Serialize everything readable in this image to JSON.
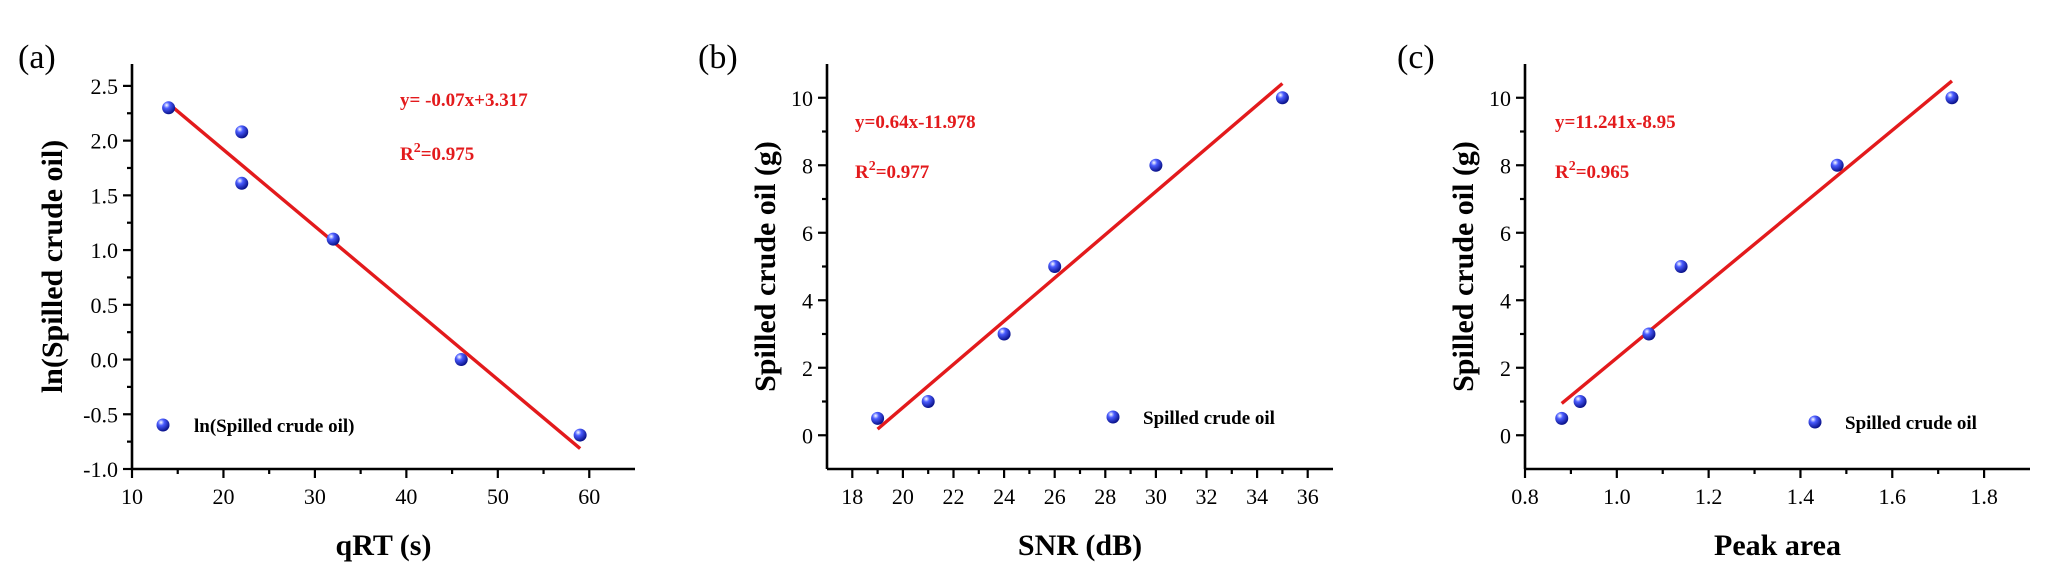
{
  "colors": {
    "point": "#1f2fd6",
    "fit_line": "#e31a1c",
    "annotation": "#e31a1c"
  },
  "chart_data": [
    {
      "panel_label": "(a)",
      "type": "scatter",
      "xlabel": "qRT (s)",
      "ylabel": "ln(Spilled crude oil)",
      "xlim": [
        10,
        65
      ],
      "ylim": [
        -1.0,
        2.7
      ],
      "xticks": [
        10,
        20,
        30,
        40,
        50,
        60
      ],
      "xtick_labels": [
        "10",
        "20",
        "30",
        "40",
        "50",
        "60"
      ],
      "yticks": [
        -1.0,
        -0.5,
        0.0,
        0.5,
        1.0,
        1.5,
        2.0,
        2.5
      ],
      "ytick_labels": [
        "-1.0",
        "-0.5",
        "0.0",
        "0.5",
        "1.0",
        "1.5",
        "2.0",
        "2.5"
      ],
      "series": [
        {
          "name": "ln(Spilled crude oil)",
          "x": [
            14,
            22,
            22,
            32,
            46,
            59
          ],
          "y": [
            2.3,
            2.08,
            1.61,
            1.1,
            0.0,
            -0.69
          ]
        }
      ],
      "fit": {
        "slope": -0.07,
        "intercept": 3.317,
        "x_range": [
          14,
          59
        ]
      },
      "equation": "y= -0.07x+3.317",
      "r2_prefix": "R",
      "r2_sup": "2",
      "r2_value": "=0.975",
      "legend_position": "bottom-left"
    },
    {
      "panel_label": "(b)",
      "type": "scatter",
      "xlabel": "SNR (dB)",
      "ylabel": "Spilled crude oil (g)",
      "xlim": [
        17,
        37
      ],
      "ylim": [
        -1,
        11
      ],
      "xticks": [
        18,
        20,
        22,
        24,
        26,
        28,
        30,
        32,
        34,
        36
      ],
      "xtick_labels": [
        "18",
        "20",
        "22",
        "24",
        "26",
        "28",
        "30",
        "32",
        "34",
        "36"
      ],
      "yticks": [
        0,
        2,
        4,
        6,
        8,
        10
      ],
      "ytick_labels": [
        "0",
        "2",
        "4",
        "6",
        "8",
        "10"
      ],
      "series": [
        {
          "name": "Spilled crude oil",
          "x": [
            19,
            21,
            24,
            26,
            30,
            35
          ],
          "y": [
            0.5,
            1,
            3,
            5,
            8,
            10
          ]
        }
      ],
      "fit": {
        "slope": 0.64,
        "intercept": -11.978,
        "x_range": [
          19,
          35
        ]
      },
      "equation": "y=0.64x-11.978",
      "r2_prefix": "R",
      "r2_sup": "2",
      "r2_value": "=0.977",
      "legend_position": "bottom-right"
    },
    {
      "panel_label": "(c)",
      "type": "scatter",
      "xlabel": "Peak area",
      "ylabel": "Spilled crude oil (g)",
      "xlim": [
        0.8,
        1.9
      ],
      "ylim": [
        -1,
        11
      ],
      "xticks": [
        0.8,
        1.0,
        1.2,
        1.4,
        1.6,
        1.8
      ],
      "xtick_labels": [
        "0.8",
        "1.0",
        "1.2",
        "1.4",
        "1.6",
        "1.8"
      ],
      "yticks": [
        0,
        2,
        4,
        6,
        8,
        10
      ],
      "ytick_labels": [
        "0",
        "2",
        "4",
        "6",
        "8",
        "10"
      ],
      "series": [
        {
          "name": "Spilled crude oil",
          "x": [
            0.88,
            0.92,
            1.07,
            1.14,
            1.48,
            1.73
          ],
          "y": [
            0.5,
            1,
            3,
            5,
            8,
            10
          ]
        }
      ],
      "fit": {
        "slope": 11.241,
        "intercept": -8.95,
        "x_range": [
          0.88,
          1.73
        ]
      },
      "equation": "y=11.241x-8.95",
      "r2_prefix": "R",
      "r2_sup": "2",
      "r2_value": "=0.965",
      "legend_position": "bottom-right"
    }
  ]
}
